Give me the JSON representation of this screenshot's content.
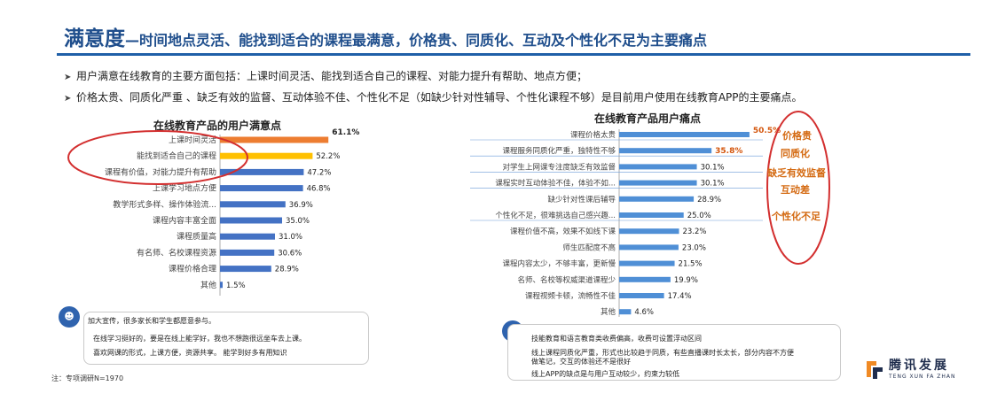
{
  "header": {
    "title": "满意度",
    "subtitle": "—时间地点灵活、能找到适合的课程最满意，价格贵、同质化、互动及个性化不足为主要痛点"
  },
  "bullets": [
    "用户满意在线教育的主要方面包括：上课时间灵活、能找到适合自己的课程、对能力提升有帮助、地点方便；",
    "价格太贵、同质化严重 、缺乏有效的监督、互动体验不佳、个性化不足（如缺少针对性辅导、个性化课程不够）是目前用户使用在线教育APP的主要痛点。"
  ],
  "colors": {
    "title": "#1f4e8c",
    "bar_blue": "#4472c4",
    "bar_orange": "#ed7d31",
    "bar_yellow": "#ffc000",
    "bar_light": "#5b9bd5",
    "highlight_red": "#d32f2f",
    "pain_label": "#d46a12"
  },
  "chart_data": [
    {
      "type": "bar",
      "orientation": "horizontal",
      "title": "在线教育产品的用户满意点",
      "categories": [
        "上课时间灵活",
        "能找到适合自己的课程",
        "课程有价值，对能力提升有帮助",
        "上课学习地点方便",
        "教学形式多样、操作体验流...",
        "课程内容丰富全面",
        "课程质量高",
        "有名师、名校课程资源",
        "课程价格合理",
        "其他"
      ],
      "values": [
        61.1,
        52.2,
        47.2,
        46.8,
        36.9,
        35.0,
        31.0,
        30.6,
        28.9,
        1.5
      ],
      "labels": [
        "61.1%",
        "52.2%",
        "47.2%",
        "46.8%",
        "36.9%",
        "35.0%",
        "31.0%",
        "30.6%",
        "28.9%",
        "1.5%"
      ],
      "bar_colors": [
        "#ed7d31",
        "#ffc000",
        "#4472c4",
        "#4472c4",
        "#4472c4",
        "#4472c4",
        "#4472c4",
        "#4472c4",
        "#4472c4",
        "#4472c4"
      ],
      "xlim": [
        0,
        65
      ]
    },
    {
      "type": "bar",
      "orientation": "horizontal",
      "title": "在线教育产品用户痛点",
      "categories": [
        "课程价格太贵",
        "课程服务同质化严重，独特性不够",
        "对学生上网课专注度缺乏有效监督",
        "课程实时互动体验不佳，体验不如...",
        "缺少针对性课后辅导",
        "个性化不足，很难挑选自己感兴趣...",
        "课程价值不高，效果不如线下课",
        "师生匹配度不高",
        "课程内容太少，不够丰富，更新慢",
        "名师、名校等权威渠道课程少",
        "课程视频卡顿，流畅性不佳",
        "其他"
      ],
      "values": [
        50.5,
        35.8,
        30.1,
        30.1,
        28.9,
        25.0,
        23.2,
        23.0,
        21.5,
        19.9,
        17.4,
        4.6
      ],
      "labels": [
        "50.5%",
        "35.8%",
        "30.1%",
        "30.1%",
        "28.9%",
        "25.0%",
        "23.2%",
        "23.0%",
        "21.5%",
        "19.9%",
        "17.4%",
        "4.6%"
      ],
      "highlight_labels": [
        true,
        true,
        false,
        false,
        false,
        false,
        false,
        false,
        false,
        false,
        false,
        false
      ],
      "xlim": [
        0,
        55
      ]
    }
  ],
  "pain_labels": [
    "价格贵",
    "同质化",
    "缺乏有效监督",
    "互动差",
    "个性化不足"
  ],
  "quotes_left": {
    "icon": "user-group-icon",
    "lines": [
      "加大宣传，很多家长和学生都愿意参与。",
      "在线学习挺好的，要是在线上能学好，我也不想跑很远坐车去上课。",
      "喜欢网课的形式，上课方便，资源共享。 能学到好多有用知识"
    ]
  },
  "quotes_right": {
    "icon": "user-group-icon",
    "lines": [
      "技能教育和语言教育类收费偏高，收费可设置浮动区间",
      "线上课程同质化严重，形式也比较趋于同质，有些直播课时长太长，部分内容不方便",
      "做笔记，交互的体验还不是很好",
      "线上APP的缺点是与用户互动较少，约束力较低"
    ]
  },
  "note": "注：专项调研N=1970",
  "logo": {
    "icon": "tengxun-logo-icon",
    "name": "腾讯发展",
    "pinyin": "TENG XUN FA ZHAN"
  }
}
